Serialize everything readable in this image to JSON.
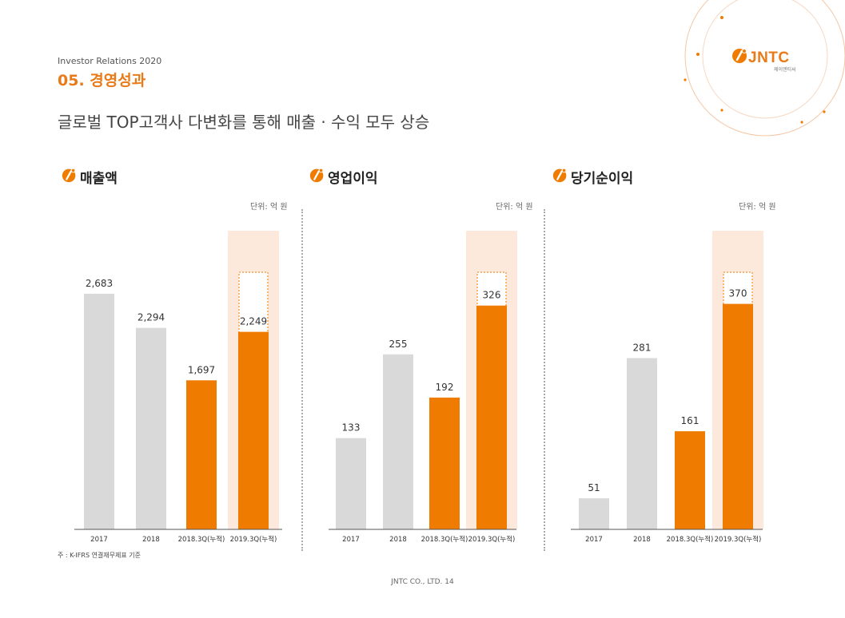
{
  "header": {
    "ir_label": "Investor Relations 2020",
    "section_title": "05. 경영성과",
    "subtitle": "글로벌 TOP고객사 다변화를 통해 매출 · 수익 모두 상승"
  },
  "logo": {
    "text": "JNTC",
    "sub": "제이앤티씨"
  },
  "colors": {
    "accent": "#ef7b00",
    "gray_bar": "#d9d9d9",
    "highlight_bg": "#fde9dc"
  },
  "sections": [
    {
      "title": "매출액",
      "unit": "단위: 억 원"
    },
    {
      "title": "영업이익",
      "unit": "단위: 억 원"
    },
    {
      "title": "당기순이익",
      "unit": "단위: 억 원"
    }
  ],
  "chart_data": [
    {
      "type": "bar",
      "title": "매출액",
      "categories": [
        "2017",
        "2018",
        "2018.3Q(누적)",
        "2019.3Q(누적)"
      ],
      "values": [
        2683,
        2294,
        1697,
        2249
      ],
      "labels": [
        "2,683",
        "2,294",
        "1,697",
        "2,249"
      ],
      "ylim": [
        0,
        3400
      ]
    },
    {
      "type": "bar",
      "title": "영업이익",
      "categories": [
        "2017",
        "2018",
        "2018.3Q(누적)",
        "2019.3Q(누적)"
      ],
      "values": [
        133,
        255,
        192,
        326
      ],
      "labels": [
        "133",
        "255",
        "192",
        "326"
      ],
      "ylim": [
        0,
        435
      ]
    },
    {
      "type": "bar",
      "title": "당기순이익",
      "categories": [
        "2017",
        "2018",
        "2018.3Q(누적)",
        "2019.3Q(누적)"
      ],
      "values": [
        51,
        281,
        161,
        370
      ],
      "labels": [
        "51",
        "281",
        "161",
        "370"
      ],
      "ylim": [
        0,
        490
      ]
    }
  ],
  "footnote": "주 : K-IFRS 연결재무제표 기준",
  "footer": "JNTC CO., LTD.  14"
}
